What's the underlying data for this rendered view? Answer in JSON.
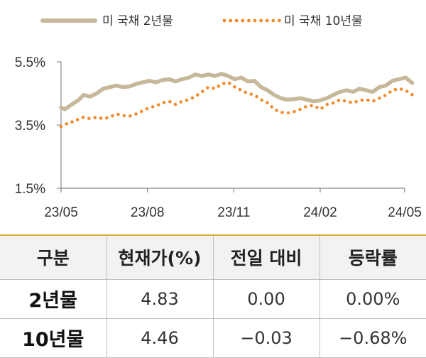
{
  "chart_data": {
    "type": "line",
    "legend_position": "top",
    "x_ticks": [
      "23/05",
      "23/08",
      "23/11",
      "24/02",
      "24/05"
    ],
    "y_ticks": [
      "5.5%",
      "3.5%",
      "1.5%"
    ],
    "ylim": [
      1.5,
      5.5
    ],
    "xlim": [
      "2023-05",
      "2024-05"
    ],
    "series": [
      {
        "name": "미 국채 2년물",
        "color": "#c8b89a",
        "style": "solid",
        "x": [
          "2023-05-01",
          "2023-05-05",
          "2023-05-10",
          "2023-05-15",
          "2023-05-20",
          "2023-05-25",
          "2023-06-01",
          "2023-06-08",
          "2023-06-15",
          "2023-06-22",
          "2023-06-29",
          "2023-07-06",
          "2023-07-13",
          "2023-07-20",
          "2023-07-27",
          "2023-08-03",
          "2023-08-10",
          "2023-08-17",
          "2023-08-24",
          "2023-08-31",
          "2023-09-07",
          "2023-09-14",
          "2023-09-21",
          "2023-09-28",
          "2023-10-05",
          "2023-10-12",
          "2023-10-19",
          "2023-10-26",
          "2023-11-02",
          "2023-11-09",
          "2023-11-16",
          "2023-11-23",
          "2023-11-30",
          "2023-12-07",
          "2023-12-14",
          "2023-12-21",
          "2023-12-28",
          "2024-01-04",
          "2024-01-11",
          "2024-01-18",
          "2024-01-25",
          "2024-02-01",
          "2024-02-08",
          "2024-02-15",
          "2024-02-22",
          "2024-02-29",
          "2024-03-07",
          "2024-03-14",
          "2024-03-21",
          "2024-03-28",
          "2024-04-04",
          "2024-04-11",
          "2024-04-18",
          "2024-04-25",
          "2024-05-02",
          "2024-05-09"
        ],
        "values": [
          4.05,
          4.0,
          4.1,
          4.2,
          4.3,
          4.45,
          4.4,
          4.5,
          4.65,
          4.7,
          4.75,
          4.7,
          4.72,
          4.8,
          4.85,
          4.9,
          4.85,
          4.92,
          4.95,
          4.88,
          4.95,
          5.0,
          5.1,
          5.05,
          5.1,
          5.05,
          5.12,
          5.05,
          4.95,
          5.0,
          4.88,
          4.9,
          4.7,
          4.6,
          4.45,
          4.35,
          4.3,
          4.32,
          4.35,
          4.3,
          4.25,
          4.28,
          4.35,
          4.45,
          4.55,
          4.6,
          4.55,
          4.65,
          4.6,
          4.55,
          4.7,
          4.75,
          4.9,
          4.95,
          5.0,
          4.83
        ]
      },
      {
        "name": "미 국채 10년물",
        "color": "#f08a2e",
        "style": "dotted",
        "x": [
          "2023-05-01",
          "2023-05-05",
          "2023-05-10",
          "2023-05-15",
          "2023-05-20",
          "2023-05-25",
          "2023-06-01",
          "2023-06-08",
          "2023-06-15",
          "2023-06-22",
          "2023-06-29",
          "2023-07-06",
          "2023-07-13",
          "2023-07-20",
          "2023-07-27",
          "2023-08-03",
          "2023-08-10",
          "2023-08-17",
          "2023-08-24",
          "2023-08-31",
          "2023-09-07",
          "2023-09-14",
          "2023-09-21",
          "2023-09-28",
          "2023-10-05",
          "2023-10-12",
          "2023-10-19",
          "2023-10-26",
          "2023-11-02",
          "2023-11-09",
          "2023-11-16",
          "2023-11-23",
          "2023-11-30",
          "2023-12-07",
          "2023-12-14",
          "2023-12-21",
          "2023-12-28",
          "2024-01-04",
          "2024-01-11",
          "2024-01-18",
          "2024-01-25",
          "2024-02-01",
          "2024-02-08",
          "2024-02-15",
          "2024-02-22",
          "2024-02-29",
          "2024-03-07",
          "2024-03-14",
          "2024-03-21",
          "2024-03-28",
          "2024-04-04",
          "2024-04-11",
          "2024-04-18",
          "2024-04-25",
          "2024-05-02",
          "2024-05-09"
        ],
        "values": [
          3.45,
          3.5,
          3.6,
          3.6,
          3.7,
          3.75,
          3.7,
          3.75,
          3.7,
          3.75,
          3.85,
          3.8,
          3.78,
          3.85,
          3.95,
          4.05,
          4.1,
          4.2,
          4.25,
          4.15,
          4.25,
          4.3,
          4.4,
          4.55,
          4.7,
          4.65,
          4.8,
          4.85,
          4.7,
          4.6,
          4.5,
          4.45,
          4.3,
          4.2,
          4.0,
          3.9,
          3.88,
          3.92,
          4.0,
          4.1,
          4.12,
          4.0,
          4.15,
          4.2,
          4.3,
          4.25,
          4.2,
          4.28,
          4.3,
          4.25,
          4.35,
          4.45,
          4.6,
          4.65,
          4.6,
          4.46
        ]
      }
    ]
  },
  "table": {
    "headers": [
      "구분",
      "현재가(%)",
      "전일 대비",
      "등락률"
    ],
    "rows": [
      {
        "label": "2년물",
        "price": "4.83",
        "change": "0.00",
        "rate": "0.00%"
      },
      {
        "label": "10년물",
        "price": "4.46",
        "change": "−0.03",
        "rate": "−0.68%"
      }
    ]
  }
}
